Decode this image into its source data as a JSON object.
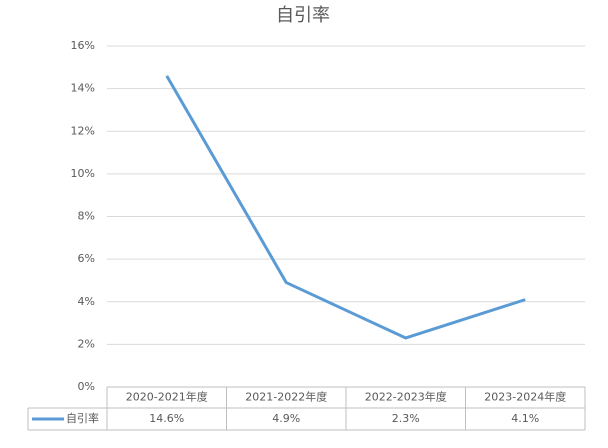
{
  "chart_data": {
    "type": "line",
    "title": "自引率",
    "categories": [
      "2020-2021年度",
      "2021-2022年度",
      "2022-2023年度",
      "2023-2024年度"
    ],
    "series": [
      {
        "name": "自引率",
        "color": "#5b9bd5",
        "values": [
          14.6,
          4.9,
          2.3,
          4.1
        ],
        "value_labels": [
          "14.6%",
          "4.9%",
          "2.3%",
          "4.1%"
        ]
      }
    ],
    "ylim": [
      0,
      16
    ],
    "yticks": [
      {
        "value": 0,
        "label": "0%"
      },
      {
        "value": 2,
        "label": "2%"
      },
      {
        "value": 4,
        "label": "4%"
      },
      {
        "value": 6,
        "label": "6%"
      },
      {
        "value": 8,
        "label": "8%"
      },
      {
        "value": 10,
        "label": "10%"
      },
      {
        "value": 12,
        "label": "12%"
      },
      {
        "value": 14,
        "label": "14%"
      },
      {
        "value": 16,
        "label": "16%"
      }
    ],
    "grid": true
  }
}
